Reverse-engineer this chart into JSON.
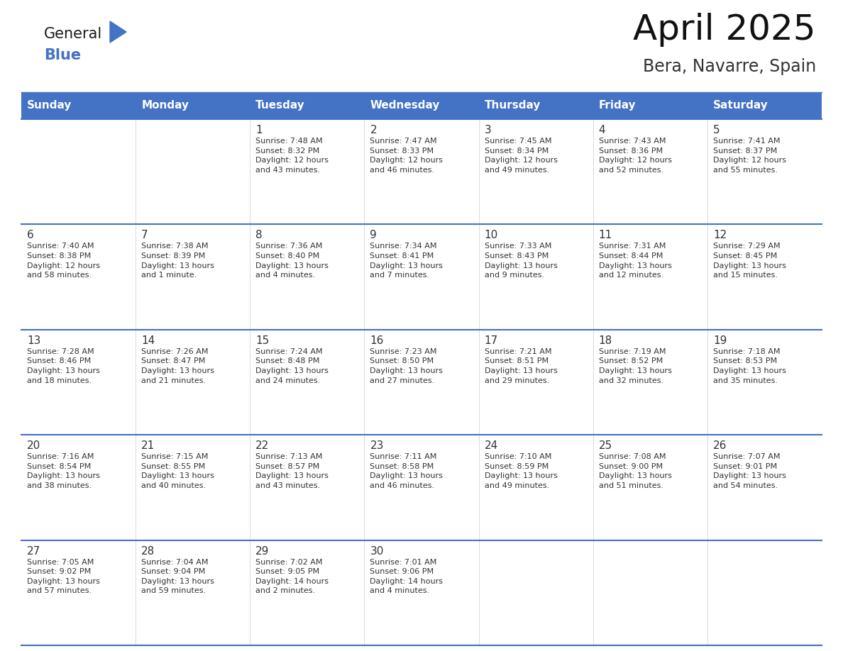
{
  "title": "April 2025",
  "subtitle": "Bera, Navarre, Spain",
  "header_bg": "#4472C4",
  "header_text_color": "#FFFFFF",
  "cell_bg": "#FFFFFF",
  "row_line_color": "#4472C4",
  "text_color": "#333333",
  "days_of_week": [
    "Sunday",
    "Monday",
    "Tuesday",
    "Wednesday",
    "Thursday",
    "Friday",
    "Saturday"
  ],
  "logo_general_color": "#1a1a1a",
  "logo_blue_color": "#4472C4",
  "title_fontsize": 36,
  "subtitle_fontsize": 17,
  "header_fontsize": 11,
  "day_num_fontsize": 11,
  "info_fontsize": 8,
  "weeks": [
    [
      {
        "day": "",
        "info": ""
      },
      {
        "day": "",
        "info": ""
      },
      {
        "day": "1",
        "info": "Sunrise: 7:48 AM\nSunset: 8:32 PM\nDaylight: 12 hours\nand 43 minutes."
      },
      {
        "day": "2",
        "info": "Sunrise: 7:47 AM\nSunset: 8:33 PM\nDaylight: 12 hours\nand 46 minutes."
      },
      {
        "day": "3",
        "info": "Sunrise: 7:45 AM\nSunset: 8:34 PM\nDaylight: 12 hours\nand 49 minutes."
      },
      {
        "day": "4",
        "info": "Sunrise: 7:43 AM\nSunset: 8:36 PM\nDaylight: 12 hours\nand 52 minutes."
      },
      {
        "day": "5",
        "info": "Sunrise: 7:41 AM\nSunset: 8:37 PM\nDaylight: 12 hours\nand 55 minutes."
      }
    ],
    [
      {
        "day": "6",
        "info": "Sunrise: 7:40 AM\nSunset: 8:38 PM\nDaylight: 12 hours\nand 58 minutes."
      },
      {
        "day": "7",
        "info": "Sunrise: 7:38 AM\nSunset: 8:39 PM\nDaylight: 13 hours\nand 1 minute."
      },
      {
        "day": "8",
        "info": "Sunrise: 7:36 AM\nSunset: 8:40 PM\nDaylight: 13 hours\nand 4 minutes."
      },
      {
        "day": "9",
        "info": "Sunrise: 7:34 AM\nSunset: 8:41 PM\nDaylight: 13 hours\nand 7 minutes."
      },
      {
        "day": "10",
        "info": "Sunrise: 7:33 AM\nSunset: 8:43 PM\nDaylight: 13 hours\nand 9 minutes."
      },
      {
        "day": "11",
        "info": "Sunrise: 7:31 AM\nSunset: 8:44 PM\nDaylight: 13 hours\nand 12 minutes."
      },
      {
        "day": "12",
        "info": "Sunrise: 7:29 AM\nSunset: 8:45 PM\nDaylight: 13 hours\nand 15 minutes."
      }
    ],
    [
      {
        "day": "13",
        "info": "Sunrise: 7:28 AM\nSunset: 8:46 PM\nDaylight: 13 hours\nand 18 minutes."
      },
      {
        "day": "14",
        "info": "Sunrise: 7:26 AM\nSunset: 8:47 PM\nDaylight: 13 hours\nand 21 minutes."
      },
      {
        "day": "15",
        "info": "Sunrise: 7:24 AM\nSunset: 8:48 PM\nDaylight: 13 hours\nand 24 minutes."
      },
      {
        "day": "16",
        "info": "Sunrise: 7:23 AM\nSunset: 8:50 PM\nDaylight: 13 hours\nand 27 minutes."
      },
      {
        "day": "17",
        "info": "Sunrise: 7:21 AM\nSunset: 8:51 PM\nDaylight: 13 hours\nand 29 minutes."
      },
      {
        "day": "18",
        "info": "Sunrise: 7:19 AM\nSunset: 8:52 PM\nDaylight: 13 hours\nand 32 minutes."
      },
      {
        "day": "19",
        "info": "Sunrise: 7:18 AM\nSunset: 8:53 PM\nDaylight: 13 hours\nand 35 minutes."
      }
    ],
    [
      {
        "day": "20",
        "info": "Sunrise: 7:16 AM\nSunset: 8:54 PM\nDaylight: 13 hours\nand 38 minutes."
      },
      {
        "day": "21",
        "info": "Sunrise: 7:15 AM\nSunset: 8:55 PM\nDaylight: 13 hours\nand 40 minutes."
      },
      {
        "day": "22",
        "info": "Sunrise: 7:13 AM\nSunset: 8:57 PM\nDaylight: 13 hours\nand 43 minutes."
      },
      {
        "day": "23",
        "info": "Sunrise: 7:11 AM\nSunset: 8:58 PM\nDaylight: 13 hours\nand 46 minutes."
      },
      {
        "day": "24",
        "info": "Sunrise: 7:10 AM\nSunset: 8:59 PM\nDaylight: 13 hours\nand 49 minutes."
      },
      {
        "day": "25",
        "info": "Sunrise: 7:08 AM\nSunset: 9:00 PM\nDaylight: 13 hours\nand 51 minutes."
      },
      {
        "day": "26",
        "info": "Sunrise: 7:07 AM\nSunset: 9:01 PM\nDaylight: 13 hours\nand 54 minutes."
      }
    ],
    [
      {
        "day": "27",
        "info": "Sunrise: 7:05 AM\nSunset: 9:02 PM\nDaylight: 13 hours\nand 57 minutes."
      },
      {
        "day": "28",
        "info": "Sunrise: 7:04 AM\nSunset: 9:04 PM\nDaylight: 13 hours\nand 59 minutes."
      },
      {
        "day": "29",
        "info": "Sunrise: 7:02 AM\nSunset: 9:05 PM\nDaylight: 14 hours\nand 2 minutes."
      },
      {
        "day": "30",
        "info": "Sunrise: 7:01 AM\nSunset: 9:06 PM\nDaylight: 14 hours\nand 4 minutes."
      },
      {
        "day": "",
        "info": ""
      },
      {
        "day": "",
        "info": ""
      },
      {
        "day": "",
        "info": ""
      }
    ]
  ]
}
